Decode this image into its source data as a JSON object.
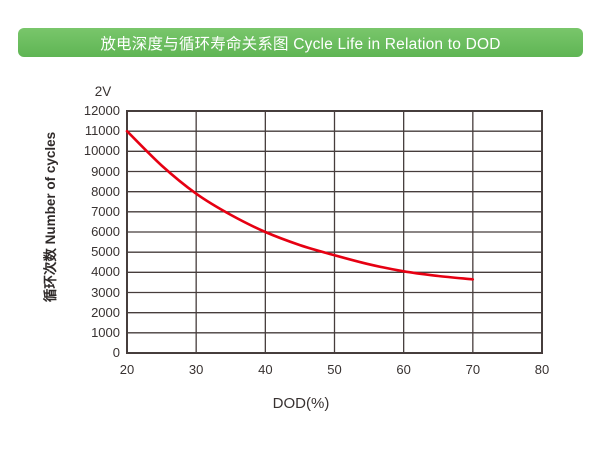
{
  "page": {
    "background": "#ffffff"
  },
  "header": {
    "title": "放电深度与循环寿命关系图 Cycle Life in Relation to DOD",
    "bg_color_top": "#79c66b",
    "bg_color_bottom": "#5fb554",
    "text_color": "#ffffff"
  },
  "chart_data": {
    "type": "line",
    "title": "放电深度与循环寿命关系图 Cycle Life in Relation to DOD",
    "series_label": "2V",
    "xlabel": "DOD(%)",
    "ylabel": "循环次数 Number of cycles",
    "x": [
      20,
      25,
      30,
      35,
      40,
      45,
      50,
      55,
      60,
      65,
      70
    ],
    "y": [
      11000,
      9300,
      7900,
      6850,
      6000,
      5350,
      4850,
      4400,
      4050,
      3820,
      3650
    ],
    "xlim": [
      20,
      80
    ],
    "ylim": [
      0,
      12000
    ],
    "x_ticks": [
      20,
      30,
      40,
      50,
      60,
      70,
      80
    ],
    "y_ticks": [
      0,
      1000,
      2000,
      3000,
      4000,
      5000,
      6000,
      7000,
      8000,
      9000,
      10000,
      11000,
      12000
    ],
    "grid": true,
    "legend_position": "top-left",
    "line_color": "#e60012",
    "grid_color": "#463d3c",
    "axis_text_color": "#383231"
  }
}
